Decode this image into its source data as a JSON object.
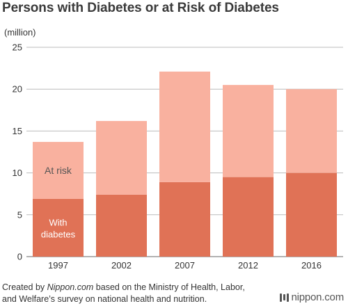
{
  "title": "Persons with Diabetes or at Risk of Diabetes",
  "source": {
    "prefix": "Created by ",
    "site": "Nippon.com",
    "suffix": " based on the Ministry of Health, Labor, and Welfare’s survey on national health and nutrition."
  },
  "logo": {
    "text": "nippon.com"
  },
  "chart_data": {
    "type": "bar",
    "stacked": true,
    "title": "Persons with Diabetes or at Risk of Diabetes",
    "unit_label": "(million)",
    "xlabel": "",
    "ylabel": "",
    "ylim": [
      0,
      25
    ],
    "yticks": [
      0,
      5,
      10,
      15,
      20,
      25
    ],
    "grid": true,
    "categories": [
      "1997",
      "2002",
      "2007",
      "2012",
      "2016"
    ],
    "series": [
      {
        "name": "With diabetes",
        "label_lines": [
          "With",
          "diabetes"
        ],
        "color": "#e07256",
        "values": [
          6.9,
          7.4,
          8.9,
          9.5,
          10.0
        ]
      },
      {
        "name": "At risk",
        "color": "#f9b19f",
        "values": [
          6.8,
          8.8,
          13.2,
          11.0,
          10.0
        ]
      }
    ]
  }
}
